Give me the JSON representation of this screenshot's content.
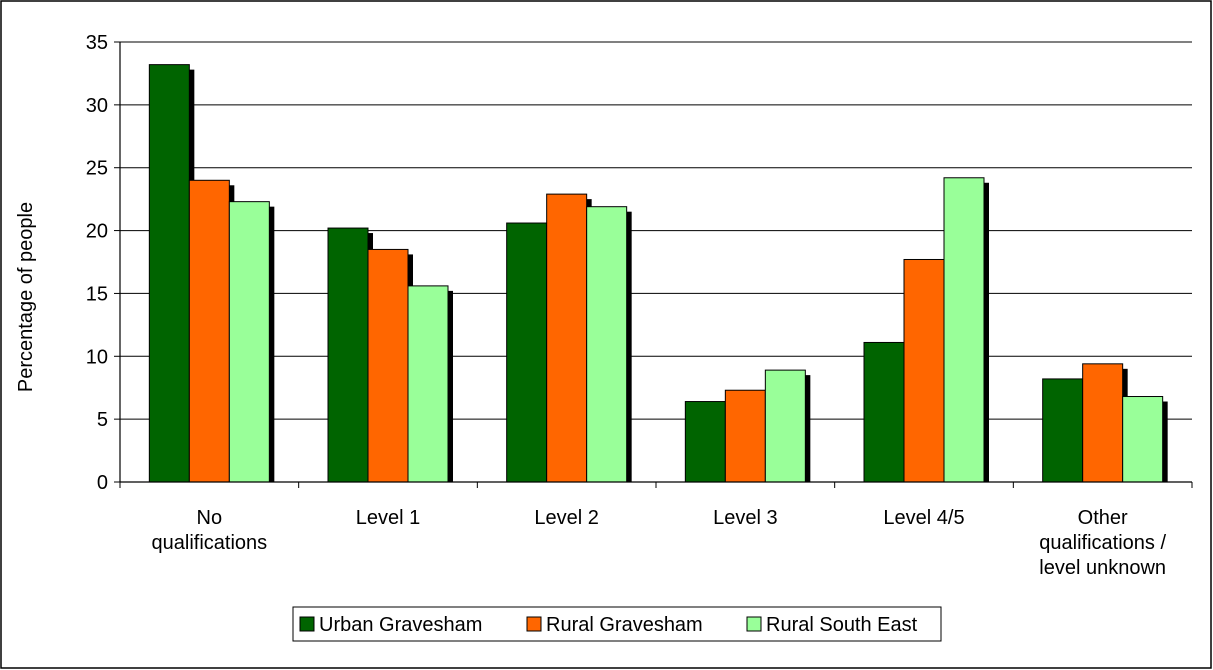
{
  "chart_data": {
    "type": "bar",
    "title": "",
    "xlabel": "",
    "ylabel": "Percentage of people",
    "ylim": [
      0,
      35
    ],
    "yticks": [
      0,
      5,
      10,
      15,
      20,
      25,
      30,
      35
    ],
    "grid": true,
    "legend_position": "bottom",
    "categories": [
      [
        "No",
        "qualifications"
      ],
      [
        "Level 1"
      ],
      [
        "Level 2"
      ],
      [
        "Level 3"
      ],
      [
        "Level 4/5"
      ],
      [
        "Other",
        "qualifications /",
        "level unknown"
      ]
    ],
    "series": [
      {
        "name": "Urban Gravesham",
        "color": "#006400",
        "values": [
          33.2,
          20.2,
          20.6,
          6.4,
          11.1,
          8.2
        ]
      },
      {
        "name": "Rural Gravesham",
        "color": "#ff6600",
        "values": [
          24.0,
          18.5,
          22.9,
          7.3,
          17.7,
          9.4
        ]
      },
      {
        "name": "Rural South East",
        "color": "#99ff99",
        "values": [
          22.3,
          15.6,
          21.9,
          8.9,
          24.2,
          6.8
        ]
      }
    ]
  }
}
